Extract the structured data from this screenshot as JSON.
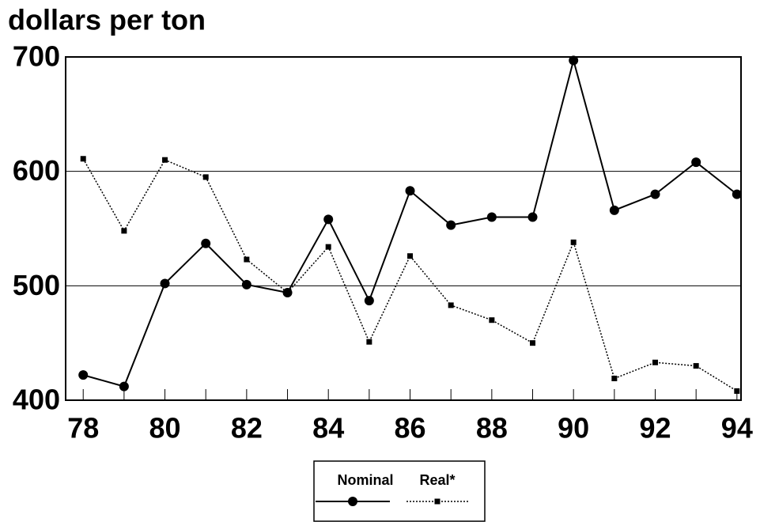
{
  "chart_data": {
    "type": "line",
    "title": "dollars per ton",
    "x": [
      78,
      79,
      80,
      81,
      82,
      83,
      84,
      85,
      86,
      87,
      88,
      89,
      90,
      91,
      92,
      93,
      94
    ],
    "series": [
      {
        "name": "Nominal",
        "color": "#000000",
        "line_style": "solid",
        "marker": "circle",
        "values": [
          422,
          412,
          502,
          537,
          501,
          494,
          558,
          487,
          583,
          553,
          560,
          560,
          697,
          566,
          580,
          608,
          580
        ]
      },
      {
        "name": "Real*",
        "color": "#000000",
        "line_style": "dotted",
        "marker": "square",
        "values": [
          611,
          548,
          610,
          595,
          523,
          494,
          534,
          451,
          526,
          483,
          470,
          450,
          538,
          419,
          433,
          430,
          408
        ]
      }
    ],
    "xlim": [
      77.57,
      94.1
    ],
    "xticks": [
      78,
      80,
      82,
      84,
      86,
      88,
      90,
      92,
      94
    ],
    "minor_xticks": [
      79,
      81,
      83,
      85,
      87,
      89,
      91,
      93
    ],
    "ylim": [
      400,
      700
    ],
    "yticks": [
      400,
      500,
      600,
      700
    ],
    "grid": true,
    "legend": "bottom"
  }
}
